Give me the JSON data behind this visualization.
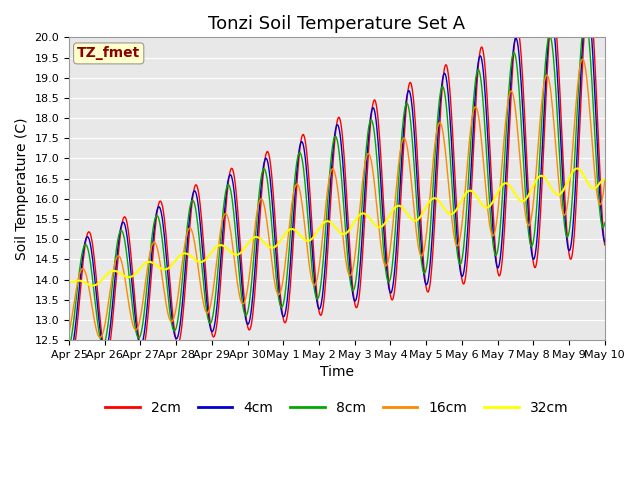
{
  "title": "Tonzi Soil Temperature Set A",
  "xlabel": "Time",
  "ylabel": "Soil Temperature (C)",
  "ylim": [
    12.5,
    20.0
  ],
  "xlim": [
    0,
    15
  ],
  "xtick_labels": [
    "Apr 25",
    "Apr 26",
    "Apr 27",
    "Apr 28",
    "Apr 29",
    "Apr 30",
    "May 1",
    "May 2",
    "May 3",
    "May 4",
    "May 5",
    "May 6",
    "May 7",
    "May 8",
    "May 9",
    "May 10"
  ],
  "annotation_text": "TZ_fmet",
  "annotation_color": "#8B0000",
  "annotation_bg": "#FFFFCC",
  "line_colors": {
    "2cm": "#FF0000",
    "4cm": "#0000CC",
    "8cm": "#00AA00",
    "16cm": "#FF8800",
    "32cm": "#FFFF00"
  },
  "line_labels": [
    "2cm",
    "4cm",
    "8cm",
    "16cm",
    "32cm"
  ],
  "background_color": "#E8E8E8",
  "grid_color": "#FFFFFF",
  "title_fontsize": 13,
  "axis_fontsize": 10,
  "tick_fontsize": 8,
  "legend_fontsize": 10
}
